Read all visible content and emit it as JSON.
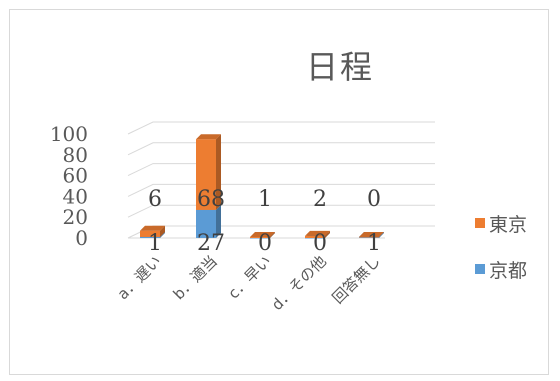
{
  "chart_data": {
    "type": "bar",
    "stacked": true,
    "three_d": true,
    "title": "日程",
    "categories": [
      "a．遅い",
      "b．適当",
      "c．早い",
      "d．その他",
      "回答無し"
    ],
    "series": [
      {
        "name": "京都",
        "color": "#5b9bd5",
        "values": [
          1,
          27,
          0,
          0,
          1
        ]
      },
      {
        "name": "東京",
        "color": "#ed7d31",
        "values": [
          6,
          68,
          1,
          2,
          0
        ]
      }
    ],
    "y_ticks": [
      "0",
      "20",
      "40",
      "60",
      "80",
      "100"
    ],
    "ylim": [
      0,
      100
    ],
    "grid": true,
    "legend_position": "right",
    "data_labels": true
  }
}
